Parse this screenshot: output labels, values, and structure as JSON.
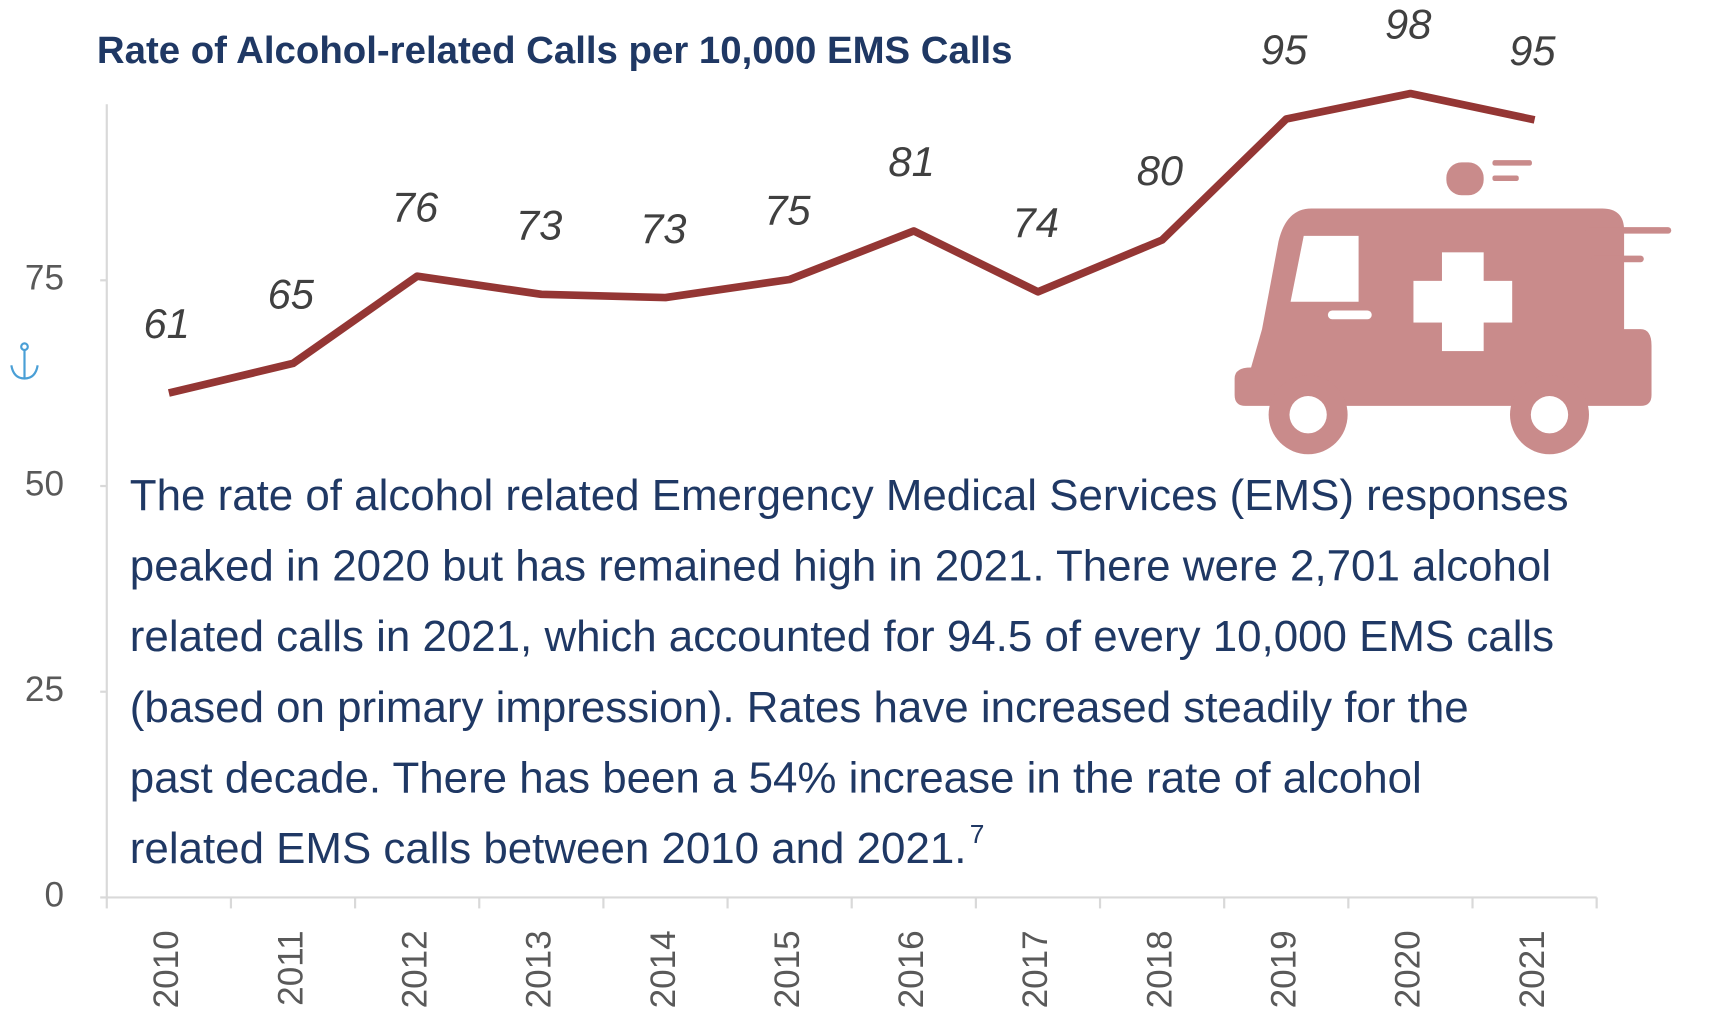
{
  "chart_data": {
    "type": "line",
    "title": "Rate of Alcohol-related Calls per 10,000 EMS Calls",
    "categories": [
      "2010",
      "2011",
      "2012",
      "2013",
      "2014",
      "2015",
      "2016",
      "2017",
      "2018",
      "2019",
      "2020",
      "2021"
    ],
    "series": [
      {
        "name": "Rate of Alcohol-related Calls per 10,000 EMS Calls",
        "color": "#943634",
        "values": [
          61.3,
          64.9,
          75.5,
          73.3,
          72.9,
          75.1,
          81.0,
          73.6,
          79.9,
          94.6,
          97.7,
          94.5
        ],
        "value_labels": [
          "61",
          "65",
          "76",
          "73",
          "73",
          "75",
          "81",
          "74",
          "80",
          "95",
          "98",
          "95"
        ]
      }
    ],
    "ylim": [
      0,
      100
    ],
    "yticks": [
      0,
      25,
      50,
      75
    ],
    "grid": false,
    "annotation": {
      "lines": [
        "The rate of alcohol related Emergency Medical Services (EMS) responses",
        "peaked in 2020 but has remained high in 2021. There were 2,701 alcohol",
        "related calls in 2021, which accounted for 94.5 of every 10,000 EMS calls",
        "(based on primary impression). Rates have increased steadily for the",
        "past decade. There has been a 54% increase in the rate of alcohol",
        "related EMS calls between 2010 and 2021."
      ],
      "footnote": "7"
    }
  }
}
